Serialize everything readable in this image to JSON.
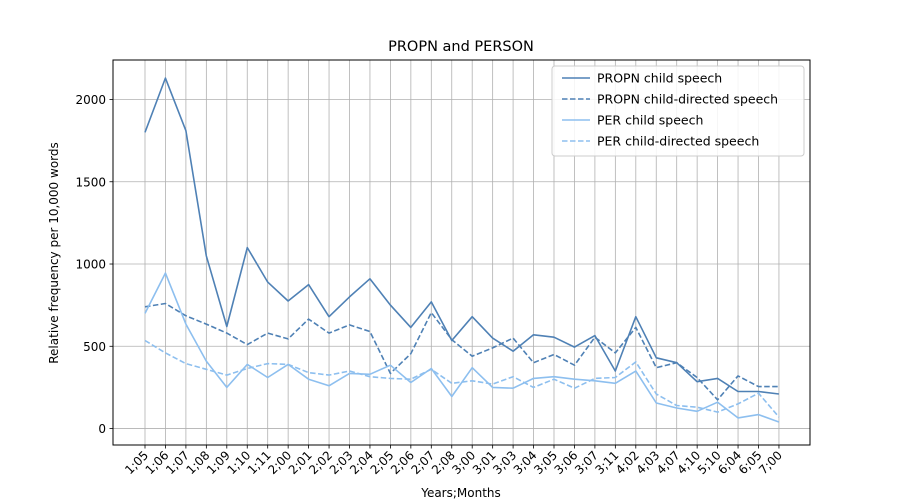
{
  "chart_data": {
    "type": "line",
    "title": "PROPN and PERSON",
    "xlabel": "Years;Months",
    "ylabel": "Relative frequency per 10,000 words",
    "ylim": [
      -100,
      2240
    ],
    "yticks": [
      0,
      500,
      1000,
      1500,
      2000
    ],
    "grid": true,
    "legend_position": "top-right",
    "categories": [
      "1;05",
      "1;06",
      "1;07",
      "1;08",
      "1;09",
      "1;10",
      "1;11",
      "2;00",
      "2;01",
      "2;02",
      "2;03",
      "2;04",
      "2;05",
      "2;06",
      "2;07",
      "2;08",
      "3;00",
      "3;01",
      "3;03",
      "3;04",
      "3;05",
      "3;06",
      "3;07",
      "3;11",
      "4;02",
      "4;03",
      "4;07",
      "4;10",
      "5;10",
      "6;04",
      "6;05",
      "7;00"
    ],
    "series": [
      {
        "name": "PROPN child speech",
        "color": "#4f81b5",
        "dash": "solid",
        "values": [
          1800,
          2130,
          1810,
          1050,
          620,
          1100,
          890,
          775,
          875,
          680,
          800,
          910,
          750,
          615,
          770,
          535,
          680,
          550,
          470,
          570,
          555,
          495,
          565,
          350,
          680,
          430,
          400,
          285,
          305,
          225,
          225,
          210
        ]
      },
      {
        "name": "PROPN child-directed speech",
        "color": "#4f81b5",
        "dash": "dashed",
        "values": [
          740,
          760,
          685,
          635,
          580,
          510,
          580,
          545,
          665,
          580,
          630,
          590,
          335,
          455,
          705,
          540,
          440,
          490,
          550,
          400,
          450,
          385,
          555,
          460,
          615,
          370,
          400,
          310,
          175,
          320,
          255,
          255
        ]
      },
      {
        "name": "PER child speech",
        "color": "#8dbfef",
        "dash": "solid",
        "values": [
          700,
          945,
          635,
          410,
          250,
          390,
          310,
          390,
          300,
          260,
          335,
          330,
          385,
          280,
          365,
          195,
          370,
          250,
          245,
          305,
          315,
          300,
          290,
          275,
          350,
          155,
          125,
          105,
          160,
          65,
          85,
          40
        ]
      },
      {
        "name": "PER child-directed speech",
        "color": "#8dbfef",
        "dash": "dashed",
        "values": [
          535,
          460,
          395,
          360,
          325,
          365,
          395,
          390,
          340,
          325,
          350,
          315,
          305,
          300,
          360,
          275,
          290,
          270,
          315,
          250,
          300,
          245,
          305,
          310,
          405,
          210,
          140,
          130,
          100,
          150,
          215,
          70
        ]
      }
    ]
  }
}
